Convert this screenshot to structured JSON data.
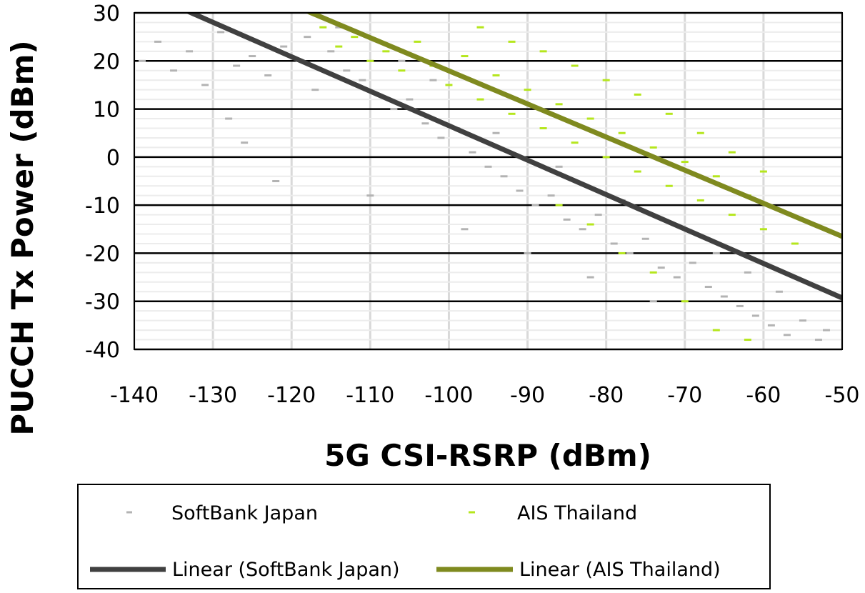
{
  "chart_data": {
    "type": "scatter",
    "title": "",
    "xlabel": "5G CSI-RSRP (dBm)",
    "ylabel": "PUCCH Tx Power (dBm)",
    "xlim": [
      -140,
      -50
    ],
    "ylim": [
      -40,
      30
    ],
    "x_ticks": [
      "-140",
      "-130",
      "-120",
      "-110",
      "-100",
      "-90",
      "-80",
      "-70",
      "-60",
      "-50"
    ],
    "y_ticks": [
      "30",
      "20",
      "10",
      "0",
      "-10",
      "-20",
      "-30",
      "-40"
    ],
    "grid": "on",
    "legend_position": "bottom",
    "series": [
      {
        "name": "SoftBank Japan",
        "kind": "scatter",
        "color": "#b3b3b3",
        "points": [
          [
            -139,
            20
          ],
          [
            -137,
            24
          ],
          [
            -135,
            18
          ],
          [
            -133,
            22
          ],
          [
            -131,
            15
          ],
          [
            -129,
            26
          ],
          [
            -127,
            19
          ],
          [
            -125,
            21
          ],
          [
            -123,
            17
          ],
          [
            -121,
            23
          ],
          [
            -119,
            20
          ],
          [
            -117,
            14
          ],
          [
            -115,
            22
          ],
          [
            -113,
            18
          ],
          [
            -111,
            16
          ],
          [
            -109,
            13
          ],
          [
            -107,
            10
          ],
          [
            -105,
            12
          ],
          [
            -103,
            7
          ],
          [
            -101,
            4
          ],
          [
            -99,
            6
          ],
          [
            -97,
            1
          ],
          [
            -95,
            -2
          ],
          [
            -93,
            -4
          ],
          [
            -91,
            -7
          ],
          [
            -89,
            -10
          ],
          [
            -87,
            -8
          ],
          [
            -85,
            -13
          ],
          [
            -83,
            -15
          ],
          [
            -81,
            -12
          ],
          [
            -79,
            -18
          ],
          [
            -77,
            -20
          ],
          [
            -75,
            -17
          ],
          [
            -73,
            -23
          ],
          [
            -71,
            -25
          ],
          [
            -69,
            -22
          ],
          [
            -67,
            -27
          ],
          [
            -65,
            -29
          ],
          [
            -63,
            -31
          ],
          [
            -61,
            -33
          ],
          [
            -59,
            -35
          ],
          [
            -57,
            -37
          ],
          [
            -55,
            -34
          ],
          [
            -53,
            -38
          ],
          [
            -52,
            -36
          ],
          [
            -128,
            8
          ],
          [
            -126,
            3
          ],
          [
            -122,
            -5
          ],
          [
            -118,
            25
          ],
          [
            -114,
            27
          ],
          [
            -110,
            -8
          ],
          [
            -106,
            20
          ],
          [
            -102,
            16
          ],
          [
            -98,
            -15
          ],
          [
            -94,
            5
          ],
          [
            -90,
            -20
          ],
          [
            -86,
            -2
          ],
          [
            -82,
            -25
          ],
          [
            -78,
            -9
          ],
          [
            -74,
            -30
          ],
          [
            -70,
            -15
          ],
          [
            -66,
            -20
          ],
          [
            -62,
            -24
          ],
          [
            -58,
            -28
          ]
        ]
      },
      {
        "name": "AIS Thailand",
        "kind": "scatter",
        "color": "#b5e61d",
        "points": [
          [
            -116,
            27
          ],
          [
            -114,
            23
          ],
          [
            -112,
            25
          ],
          [
            -110,
            20
          ],
          [
            -108,
            22
          ],
          [
            -106,
            18
          ],
          [
            -104,
            24
          ],
          [
            -102,
            19
          ],
          [
            -100,
            15
          ],
          [
            -98,
            21
          ],
          [
            -96,
            12
          ],
          [
            -94,
            17
          ],
          [
            -92,
            9
          ],
          [
            -90,
            14
          ],
          [
            -88,
            6
          ],
          [
            -86,
            11
          ],
          [
            -84,
            3
          ],
          [
            -82,
            8
          ],
          [
            -80,
            0
          ],
          [
            -78,
            5
          ],
          [
            -76,
            -3
          ],
          [
            -74,
            2
          ],
          [
            -72,
            -6
          ],
          [
            -70,
            -1
          ],
          [
            -68,
            -9
          ],
          [
            -66,
            -4
          ],
          [
            -64,
            -12
          ],
          [
            -62,
            -8
          ],
          [
            -60,
            -15
          ],
          [
            -58,
            -11
          ],
          [
            -56,
            -18
          ],
          [
            -96,
            27
          ],
          [
            -92,
            24
          ],
          [
            -88,
            22
          ],
          [
            -84,
            19
          ],
          [
            -80,
            16
          ],
          [
            -76,
            13
          ],
          [
            -72,
            9
          ],
          [
            -68,
            5
          ],
          [
            -64,
            1
          ],
          [
            -60,
            -3
          ],
          [
            -86,
            -10
          ],
          [
            -82,
            -14
          ],
          [
            -78,
            -20
          ],
          [
            -74,
            -24
          ],
          [
            -70,
            -30
          ],
          [
            -66,
            -36
          ],
          [
            -62,
            -38
          ]
        ]
      },
      {
        "name": "Linear (SoftBank Japan)",
        "kind": "line",
        "color": "#404040",
        "x": [
          -140,
          -50
        ],
        "y": [
          35.2,
          -29.3
        ]
      },
      {
        "name": "Linear (AIS Thailand)",
        "kind": "line",
        "color": "#7f8a1f",
        "x": [
          -140,
          -50
        ],
        "y": [
          45.5,
          -16.5
        ]
      }
    ]
  }
}
